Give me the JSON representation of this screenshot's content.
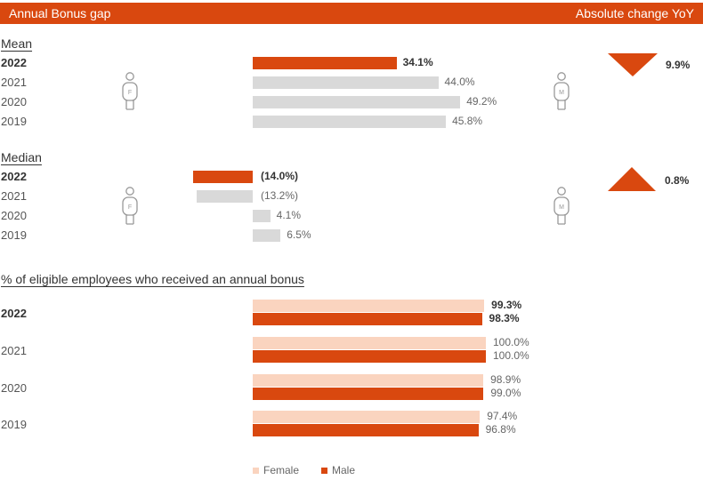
{
  "header": {
    "title": "Annual Bonus gap",
    "right_label": "Absolute change YoY"
  },
  "colors": {
    "accent": "#d9480f",
    "gray": "#d9d9d9",
    "peach": "#fad4bf"
  },
  "mean": {
    "title": "Mean",
    "yoy": "9.9%",
    "yoy_direction": "down",
    "female_icon_letter": "F",
    "male_icon_letter": "M",
    "rows": [
      {
        "year": "2022",
        "label": "34.1%"
      },
      {
        "year": "2021",
        "label": "44.0%"
      },
      {
        "year": "2020",
        "label": "49.2%"
      },
      {
        "year": "2019",
        "label": "45.8%"
      }
    ]
  },
  "median": {
    "title": "Median",
    "yoy": "0.8%",
    "yoy_direction": "up",
    "female_icon_letter": "F",
    "male_icon_letter": "M",
    "rows": [
      {
        "year": "2022",
        "label": "(14.0%)"
      },
      {
        "year": "2021",
        "label": "(13.2%)"
      },
      {
        "year": "2020",
        "label": "4.1%"
      },
      {
        "year": "2019",
        "label": "6.5%"
      }
    ]
  },
  "eligible": {
    "title": "% of eligible employees who received an annual bonus",
    "rows": [
      {
        "year": "2022",
        "female_label": "99.3%",
        "male_label": "98.3%"
      },
      {
        "year": "2021",
        "female_label": "100.0%",
        "male_label": "100.0%"
      },
      {
        "year": "2020",
        "female_label": "98.9%",
        "male_label": "99.0%"
      },
      {
        "year": "2019",
        "female_label": "97.4%",
        "male_label": "96.8%"
      }
    ]
  },
  "legend": {
    "female": "Female",
    "male": "Male"
  },
  "chart_data": [
    {
      "type": "bar",
      "title": "Mean",
      "categories": [
        "2022",
        "2021",
        "2020",
        "2019"
      ],
      "values": [
        34.1,
        44.0,
        49.2,
        45.8
      ],
      "unit": "%"
    },
    {
      "type": "bar",
      "title": "Median",
      "categories": [
        "2022",
        "2021",
        "2020",
        "2019"
      ],
      "values": [
        -14.0,
        -13.2,
        4.1,
        6.5
      ],
      "unit": "%"
    },
    {
      "type": "bar",
      "title": "% of eligible employees who received an annual bonus",
      "categories": [
        "2022",
        "2021",
        "2020",
        "2019"
      ],
      "series": [
        {
          "name": "Female",
          "values": [
            99.3,
            100.0,
            98.9,
            97.4
          ]
        },
        {
          "name": "Male",
          "values": [
            98.3,
            100.0,
            99.0,
            96.8
          ]
        }
      ],
      "unit": "%"
    }
  ]
}
